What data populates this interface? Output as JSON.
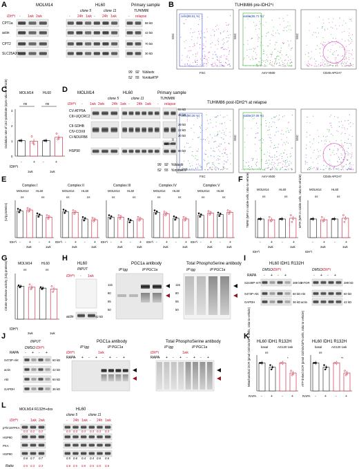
{
  "figure": {
    "panel_letters": [
      "A",
      "B",
      "C",
      "D",
      "E",
      "F",
      "G",
      "H",
      "I",
      "J",
      "K",
      "L"
    ]
  },
  "panel_a": {
    "cell_lines": [
      "MOLM14",
      "HL60",
      "Primary sample"
    ],
    "clones": [
      "clone 5",
      "clone 11",
      "TUHIM86"
    ],
    "idh_label": "IDH^i",
    "conditions": [
      "-",
      "1wk",
      "2wk",
      "-",
      "24h",
      "1wk",
      "-",
      "24h",
      "1wk"
    ],
    "relapse_header": [
      "-",
      "relapse"
    ],
    "rows": [
      "CPT1a",
      "actin",
      "CPT2",
      "SLC25A20"
    ],
    "kd": [
      "88 kD",
      "42 kD",
      "70 kD",
      "30 kD"
    ],
    "blasts": {
      "values": [
        "99",
        "92"
      ],
      "label": "%blasts"
    },
    "mitoatp": {
      "values": [
        "52",
        "55"
      ],
      "label": "%mitoATP"
    }
  },
  "panel_b": {
    "title_pre": "TUHIM86 pre-IDH2^i",
    "title_post": "TUHIM86 post-IDH2^i at relapse",
    "axis": [
      "FSC",
      "AnV-V500",
      "CD45-APCH7"
    ],
    "ylabel": "SSC",
    "gates_pre": [
      "cells(85.51 %)",
      "viable(55.71 %)"
    ],
    "gates_post": [
      "cells(90.36 %)",
      "viable(37.06 %)"
    ]
  },
  "panel_c": {
    "ylabel": "Oxidation rate of 14C-palmitate (cpm ratio to vehicle)",
    "groups": [
      "MOLM14",
      "HL60"
    ],
    "ns": "ns",
    "x_labels": [
      "-",
      "+",
      "-",
      "+"
    ],
    "dose": [
      "1wk",
      "1wk"
    ],
    "idh": "IDH^i",
    "yticks": [
      "0",
      "1",
      "2",
      "3"
    ]
  },
  "panel_d": {
    "headers": [
      "MOLM14",
      "HL60",
      "Primary sample"
    ],
    "clones": [
      "clone 5",
      "clone 11",
      "TUHIM86"
    ],
    "idh_label": "IDH^i",
    "conditions": [
      "-",
      "1wk",
      "2wk",
      "-",
      "24h",
      "1wk",
      "-",
      "24h",
      "1wk"
    ],
    "relapse_header": [
      "-",
      "relapse"
    ],
    "rows": [
      "CV-ATP5A",
      "CIII-UQCRC2",
      "CII-SDHB",
      "CIV-COXII",
      "CI-NDUFB8",
      "HSP90"
    ],
    "kd": [
      "54 kD",
      "48 kD",
      "29 kD",
      "22 kD",
      "20 kD",
      "90 kD"
    ],
    "actin_label": "actin",
    "blasts": {
      "values": [
        "99",
        "92"
      ],
      "label": "%blasts"
    },
    "mitoatp": {
      "values": [
        "52",
        "55"
      ],
      "label": "%mitoATP"
    }
  },
  "panel_e": {
    "ylabel": "(U/g proteins)",
    "titles": [
      "Complex I",
      "Complex II",
      "Complex III",
      "Complex IV",
      "Complex V"
    ],
    "ns": "ns",
    "groups": [
      "MOLM14",
      "HL60"
    ],
    "x_labels": [
      "-",
      "+",
      "-",
      "+"
    ],
    "dose": [
      "2wk",
      "1wk"
    ],
    "idh": "IDH^i"
  },
  "panel_f": {
    "ylabels": [
      "TMRE (MFI in viable cells, ratio to vehicle)",
      "MTR (MFI in viable cells, ratio to vehicle)"
    ],
    "groups": [
      "MOLM14",
      "HL60"
    ],
    "ns": "ns",
    "dose": [
      "2wk",
      "1wk"
    ],
    "x_labels": [
      "-",
      "+",
      "-",
      "+"
    ],
    "idh": "IDH^i"
  },
  "panel_g": {
    "ylabel": "Citrate synthase activity (U/g proteins)",
    "groups": [
      "MOLM14",
      "HL60"
    ],
    "ns": "ns",
    "dose": [
      "2wk",
      "1wk"
    ],
    "idh": "IDH^i"
  },
  "panel_h": {
    "title": "HL60",
    "subtitle": "INPUT",
    "idh": "IDH^i",
    "conditions": [
      "-",
      "1wk"
    ],
    "antibody_1": "PGC1a antibody",
    "antibody_2": "Total PhosphoSerine antibody",
    "ip_labels": [
      "IP Igg",
      "IP PGC1a"
    ],
    "kd_left": [
      "115",
      "80",
      "65",
      "50"
    ],
    "kd_right": [
      "115",
      "80",
      "65",
      "50"
    ],
    "actin": "actin",
    "actin_kd": "42 kD"
  },
  "panel_i": {
    "title": "HL60 IDH1 R132H",
    "conditions": [
      "DMSO",
      "IDH^i"
    ],
    "rapa": "RAPA",
    "rapa_signs": [
      "-",
      "+",
      "-",
      "+"
    ],
    "rows_left": [
      "S2448P-mTOR",
      "S473P-Akt",
      "GAPDH"
    ],
    "rows_right": [
      "mTOR",
      "Akt",
      "actin"
    ],
    "kd": [
      "289 kD",
      "60 kD",
      "36 kD"
    ],
    "kd_right": [
      "289 kD",
      "60 kD",
      "42 kD"
    ]
  },
  "panel_j": {
    "input": "INPUT",
    "conditions": [
      "DMSO",
      "IDH^i"
    ],
    "rapa": "RAPA",
    "rapa_signs": [
      "-",
      "+",
      "-",
      "+"
    ],
    "rows": [
      "S473P-Akt",
      "actin",
      "Akt",
      "GAPDH"
    ],
    "kd": [
      "60 kD",
      "42 kD",
      "60 kD",
      "36 kD"
    ],
    "antibody_1": "PGC1a antibody",
    "antibody_2": "Total PhosphoSerine antibody",
    "ip_labels": [
      "IP Igg",
      "IP PGC1a"
    ],
    "idh": "IDH^i",
    "dose": "1wk"
  },
  "panel_k": {
    "titles": [
      "HL60 IDH1 R132H",
      "HL60 IDH1 R132H"
    ],
    "group_labels": [
      "basal",
      "AG120 1wk"
    ],
    "ylabels": [
      "Mitochondrial OCR (pmol O2/min/10^5 cells, ratio to vehicle)",
      "ATP-linked OCR (pmol O2/min/10^5 cells, ratio to vehicle)"
    ],
    "rapa": "RAPA",
    "rapa_signs": [
      "-",
      "+",
      "-",
      "+"
    ],
    "annot_left": [
      "ns",
      "*"
    ],
    "annot_right": [
      "ns",
      "**"
    ]
  },
  "panel_l": {
    "headers": [
      "MOLM14 R132H+dox",
      "HL60"
    ],
    "clones": [
      "clone 5",
      "clone 11"
    ],
    "idh": "IDH^i",
    "conditions": [
      "-",
      "1wk",
      "2wk",
      "-",
      "24h",
      "1wk",
      "-",
      "24h",
      "1wk"
    ],
    "rows": [
      "pThr197PKA",
      "HSP90",
      "PKA",
      "HSP90"
    ],
    "ratio_label": "Ratio",
    "ratio_red": [
      "0.3",
      "0.2",
      "0.2",
      "0.3",
      "0.3",
      "0.3",
      "0.3",
      "0.3",
      "0.3"
    ],
    "ratio_black": [
      "0.6",
      "0.7",
      "0.7",
      "0.5",
      "0.6",
      "0.4",
      "0.4",
      "0.6",
      "0.6"
    ],
    "ratio_bottom": [
      "0.5",
      "0.3",
      "0.3",
      "0.6",
      "0.5",
      "0.8",
      "0.5",
      "0.5",
      "0.6"
    ]
  },
  "colors": {
    "red": "#c8102e",
    "blot_bg": "#e8e8e8",
    "band": "#222222",
    "flow_pink": "#e040c0",
    "flow_blue": "#3050d0",
    "flow_green": "#30b030"
  }
}
